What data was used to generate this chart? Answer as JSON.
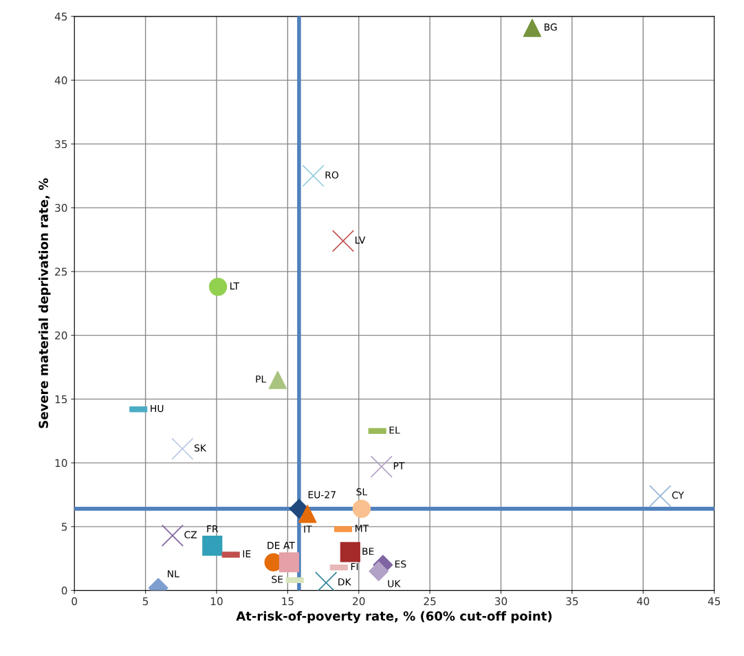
{
  "chart_data": {
    "type": "scatter",
    "xlabel": "At-risk-of-poverty rate, % (60% cut-off point)",
    "ylabel": "Severe material deprivation rate, %",
    "xlim": [
      0,
      45
    ],
    "ylim": [
      0,
      45
    ],
    "xticks": [
      0,
      5,
      10,
      15,
      20,
      25,
      30,
      35,
      40,
      45
    ],
    "yticks": [
      0,
      5,
      10,
      15,
      20,
      25,
      30,
      35,
      40,
      45
    ],
    "grid": true,
    "ref_lines": [
      {
        "axis": "x",
        "value": 15.8,
        "color": "#4f81bd"
      },
      {
        "axis": "y",
        "value": 6.4,
        "color": "#4f81bd"
      }
    ],
    "series": [
      {
        "name": "BG",
        "color": "#77933c",
        "marker": "triangle",
        "x": [
          32.2
        ],
        "values": [
          44.1
        ]
      },
      {
        "name": "RO",
        "color": "#93cddd",
        "marker": "cross",
        "x": [
          16.8
        ],
        "values": [
          32.5
        ]
      },
      {
        "name": "LV",
        "color": "#c0504d",
        "marker": "cross",
        "x": [
          18.9
        ],
        "values": [
          27.4
        ]
      },
      {
        "name": "LT",
        "color": "#92d050",
        "marker": "circle",
        "x": [
          10.1
        ],
        "values": [
          23.8
        ]
      },
      {
        "name": "PL",
        "color": "#a9c47f",
        "marker": "triangle",
        "x": [
          14.3
        ],
        "values": [
          16.5
        ]
      },
      {
        "name": "HU",
        "color": "#4bacc6",
        "x": [
          4.5
        ],
        "values": [
          14.2
        ]
      },
      {
        "name": "SK",
        "color": "#b9c7e4",
        "marker": "cross",
        "x": [
          7.6
        ],
        "values": [
          11.1
        ]
      },
      {
        "name": "EL",
        "color": "#9bbb59",
        "x": [
          21.3
        ],
        "values": [
          12.5
        ]
      },
      {
        "name": "PT",
        "color": "#b3a2c7",
        "marker": "cross",
        "x": [
          21.6
        ],
        "values": [
          9.7
        ]
      },
      {
        "name": "CY",
        "color": "#95b3d7",
        "marker": "cross",
        "x": [
          41.2
        ],
        "values": [
          7.4
        ]
      },
      {
        "name": "EU-27",
        "color": "#1f497d",
        "marker": "diamond",
        "x": [
          15.8
        ],
        "values": [
          6.4
        ]
      },
      {
        "name": "IT",
        "color": "#e46c0a",
        "marker": "triangle",
        "x": [
          16.4
        ],
        "values": [
          6.0
        ]
      },
      {
        "name": "SL",
        "color": "#fac090",
        "marker": "circle",
        "x": [
          20.2
        ],
        "values": [
          6.4
        ]
      },
      {
        "name": "MT",
        "color": "#f79646",
        "x": [
          18.9
        ],
        "values": [
          4.8
        ]
      },
      {
        "name": "CZ",
        "color": "#8064a2",
        "marker": "cross",
        "x": [
          6.9
        ],
        "values": [
          4.3
        ]
      },
      {
        "name": "FR",
        "color": "#31a0b8",
        "marker": "square",
        "x": [
          9.7
        ],
        "values": [
          3.5
        ]
      },
      {
        "name": "IE",
        "color": "#c0504d",
        "x": [
          11.0
        ],
        "values": [
          2.8
        ]
      },
      {
        "name": "DE",
        "color": "#e46c0a",
        "marker": "circle",
        "x": [
          14.0
        ],
        "values": [
          2.2
        ]
      },
      {
        "name": "AT",
        "color": "#e6a0a8",
        "marker": "square",
        "x": [
          15.1
        ],
        "values": [
          2.2
        ]
      },
      {
        "name": "BE",
        "color": "#a52a2a",
        "marker": "square",
        "x": [
          19.4
        ],
        "values": [
          3.0
        ]
      },
      {
        "name": "ES",
        "color": "#7f64a2",
        "marker": "diamond",
        "x": [
          21.7
        ],
        "values": [
          2.0
        ]
      },
      {
        "name": "FI",
        "color": "#e6b9b8",
        "x": [
          18.6
        ],
        "values": [
          1.8
        ]
      },
      {
        "name": "UK",
        "color": "#b3a2c7",
        "marker": "diamond",
        "x": [
          21.4
        ],
        "values": [
          1.5
        ]
      },
      {
        "name": "SE",
        "color": "#d7e4bd",
        "x": [
          15.5
        ],
        "values": [
          0.8
        ]
      },
      {
        "name": "DK",
        "color": "#31859c",
        "marker": "cross",
        "x": [
          17.7
        ],
        "values": [
          0.6
        ]
      },
      {
        "name": "NL",
        "color": "#7f9fd0",
        "marker": "diamond",
        "x": [
          5.9
        ],
        "values": [
          0.2
        ]
      }
    ]
  }
}
